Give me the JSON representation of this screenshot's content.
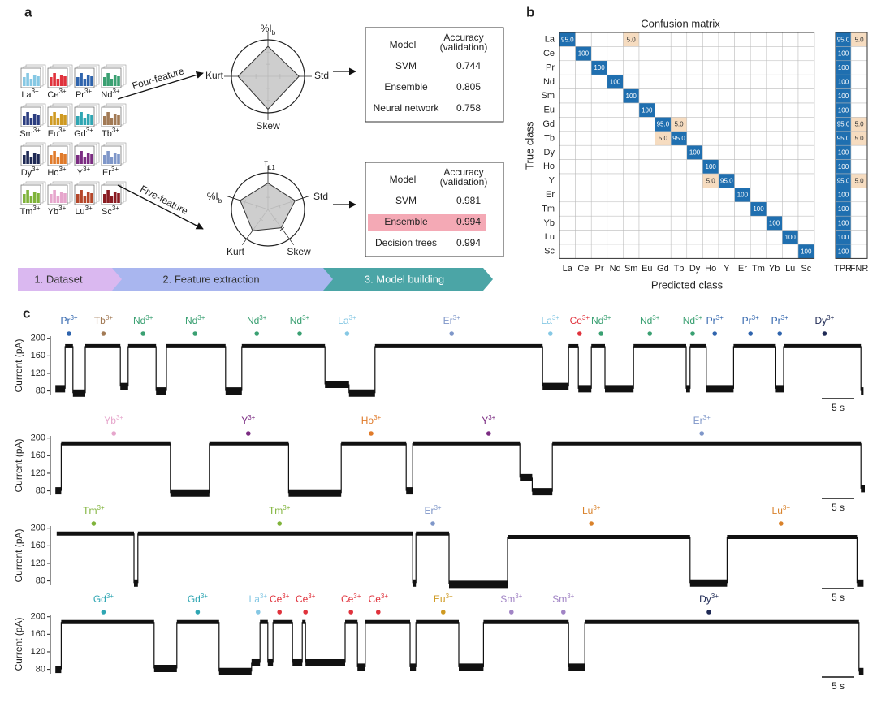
{
  "panel_a": {
    "letter": "a",
    "icons": [
      {
        "symbol": "La",
        "charge": "3+",
        "color": "#86c8e4"
      },
      {
        "symbol": "Ce",
        "charge": "3+",
        "color": "#e0323c"
      },
      {
        "symbol": "Pr",
        "charge": "3+",
        "color": "#2f64ad"
      },
      {
        "symbol": "Nd",
        "charge": "3+",
        "color": "#3aa072"
      },
      {
        "symbol": "Sm",
        "charge": "3+",
        "color": "#2b3d80"
      },
      {
        "symbol": "Eu",
        "charge": "3+",
        "color": "#cf9a22"
      },
      {
        "symbol": "Gd",
        "charge": "3+",
        "color": "#2fa6b3"
      },
      {
        "symbol": "Tb",
        "charge": "3+",
        "color": "#a27a55"
      },
      {
        "symbol": "Dy",
        "charge": "3+",
        "color": "#1f2a55"
      },
      {
        "symbol": "Ho",
        "charge": "3+",
        "color": "#e07b2b"
      },
      {
        "symbol": "Y",
        "charge": "3+",
        "color": "#7b2c82"
      },
      {
        "symbol": "Er",
        "charge": "3+",
        "color": "#7f97c9"
      },
      {
        "symbol": "Tm",
        "charge": "3+",
        "color": "#7fb33a"
      },
      {
        "symbol": "Yb",
        "charge": "3+",
        "color": "#e6a6cc"
      },
      {
        "symbol": "Lu",
        "charge": "3+",
        "color": "#b5472a"
      },
      {
        "symbol": "Sc",
        "charge": "3+",
        "color": "#8a1c22"
      }
    ],
    "four_feature": {
      "arrow_label": "Four-feature",
      "axes": [
        {
          "main": "%I",
          "sub": "b"
        },
        {
          "main": "Std"
        },
        {
          "main": "Skew"
        },
        {
          "main": "Kurt"
        }
      ],
      "table": {
        "model_header": "Model",
        "accuracy_header": [
          "Accuracy",
          "(validation)"
        ],
        "rows": [
          [
            "SVM",
            "0.744"
          ],
          [
            "Ensemble",
            "0.805"
          ],
          [
            "Neural network",
            "0.758"
          ]
        ]
      }
    },
    "five_feature": {
      "arrow_label": "Five-feature",
      "axes": [
        {
          "main": "τ",
          "sub": "L1"
        },
        {
          "main": "Std"
        },
        {
          "main": "Skew"
        },
        {
          "main": "Kurt"
        },
        {
          "main": "%I",
          "sub": "b"
        }
      ],
      "table": {
        "model_header": "Model",
        "accuracy_header": [
          "Accuracy",
          "(validation)"
        ],
        "rows": [
          [
            "SVM",
            "0.981"
          ],
          [
            "Ensemble",
            "0.994"
          ],
          [
            "Decision trees",
            "0.994"
          ]
        ],
        "highlight_row": 1,
        "highlight_color": "#f4a9b5"
      }
    },
    "pipeline": [
      {
        "label": "1. Dataset",
        "color": "#dab8f0"
      },
      {
        "label": "2. Feature extraction",
        "color": "#a9b6ef"
      },
      {
        "label": "3. Model building",
        "color": "#4ba5a6"
      }
    ]
  },
  "panel_b": {
    "letter": "b",
    "title": "Confusion matrix",
    "xlabel": "Predicted class",
    "ylabel": "True class",
    "classes": [
      "La",
      "Ce",
      "Pr",
      "Nd",
      "Sm",
      "Eu",
      "Gd",
      "Tb",
      "Dy",
      "Ho",
      "Y",
      "Er",
      "Tm",
      "Yb",
      "Lu",
      "Sc"
    ],
    "matrix": [
      [
        "95.0",
        null,
        null,
        null,
        "5.0",
        null,
        null,
        null,
        null,
        null,
        null,
        null,
        null,
        null,
        null,
        null
      ],
      [
        null,
        "100",
        null,
        null,
        null,
        null,
        null,
        null,
        null,
        null,
        null,
        null,
        null,
        null,
        null,
        null
      ],
      [
        null,
        null,
        "100",
        null,
        null,
        null,
        null,
        null,
        null,
        null,
        null,
        null,
        null,
        null,
        null,
        null
      ],
      [
        null,
        null,
        null,
        "100",
        null,
        null,
        null,
        null,
        null,
        null,
        null,
        null,
        null,
        null,
        null,
        null
      ],
      [
        null,
        null,
        null,
        null,
        "100",
        null,
        null,
        null,
        null,
        null,
        null,
        null,
        null,
        null,
        null,
        null
      ],
      [
        null,
        null,
        null,
        null,
        null,
        "100",
        null,
        null,
        null,
        null,
        null,
        null,
        null,
        null,
        null,
        null
      ],
      [
        null,
        null,
        null,
        null,
        null,
        null,
        "95.0",
        "5.0",
        null,
        null,
        null,
        null,
        null,
        null,
        null,
        null
      ],
      [
        null,
        null,
        null,
        null,
        null,
        null,
        "5.0",
        "95.0",
        null,
        null,
        null,
        null,
        null,
        null,
        null,
        null
      ],
      [
        null,
        null,
        null,
        null,
        null,
        null,
        null,
        null,
        "100",
        null,
        null,
        null,
        null,
        null,
        null,
        null
      ],
      [
        null,
        null,
        null,
        null,
        null,
        null,
        null,
        null,
        null,
        "100",
        null,
        null,
        null,
        null,
        null,
        null
      ],
      [
        null,
        null,
        null,
        null,
        null,
        null,
        null,
        null,
        null,
        "5.0",
        "95.0",
        null,
        null,
        null,
        null,
        null
      ],
      [
        null,
        null,
        null,
        null,
        null,
        null,
        null,
        null,
        null,
        null,
        null,
        "100",
        null,
        null,
        null,
        null
      ],
      [
        null,
        null,
        null,
        null,
        null,
        null,
        null,
        null,
        null,
        null,
        null,
        null,
        "100",
        null,
        null,
        null
      ],
      [
        null,
        null,
        null,
        null,
        null,
        null,
        null,
        null,
        null,
        null,
        null,
        null,
        null,
        "100",
        null,
        null
      ],
      [
        null,
        null,
        null,
        null,
        null,
        null,
        null,
        null,
        null,
        null,
        null,
        null,
        null,
        null,
        "100",
        null
      ],
      [
        null,
        null,
        null,
        null,
        null,
        null,
        null,
        null,
        null,
        null,
        null,
        null,
        null,
        null,
        null,
        "100"
      ]
    ],
    "rate_headers": [
      "TPR",
      "FNR"
    ],
    "tpr": [
      "95.0",
      "100",
      "100",
      "100",
      "100",
      "100",
      "95.0",
      "95.0",
      "100",
      "100",
      "95.0",
      "100",
      "100",
      "100",
      "100",
      "100"
    ],
    "fnr": [
      "5.0",
      null,
      null,
      null,
      null,
      null,
      "5.0",
      "5.0",
      null,
      null,
      "5.0",
      null,
      null,
      null,
      null,
      null
    ],
    "diagonal_color": "#1f6fb0",
    "offdiagonal_color": "#f6dcc0"
  },
  "panel_c": {
    "letter": "c",
    "ylabel": "Current (pA)",
    "xlim": [
      0,
      125
    ],
    "scalebar": {
      "value": 5,
      "label": "5 s"
    },
    "rows": [
      {
        "ylim": [
          70,
          205
        ],
        "yticks": [
          80,
          120,
          160,
          200
        ],
        "segments": [
          [
            0.4,
            1.9,
            85
          ],
          [
            1.9,
            3.1,
            182
          ],
          [
            3.1,
            5,
            75
          ],
          [
            5,
            10.4,
            182
          ],
          [
            10.4,
            11.6,
            90
          ],
          [
            11.6,
            15.9,
            182
          ],
          [
            15.9,
            17.5,
            80
          ],
          [
            17.5,
            26.6,
            182
          ],
          [
            26.6,
            29.1,
            80
          ],
          [
            29.1,
            41.9,
            182
          ],
          [
            41.9,
            45.6,
            95
          ],
          [
            45.6,
            49.6,
            75
          ],
          [
            49.6,
            75.4,
            182
          ],
          [
            75.4,
            79.4,
            90
          ],
          [
            79.4,
            80.9,
            182
          ],
          [
            80.9,
            82.9,
            85
          ],
          [
            82.9,
            85,
            182
          ],
          [
            85,
            89.4,
            85
          ],
          [
            89.4,
            97.5,
            182
          ],
          [
            97.5,
            98.1,
            85
          ],
          [
            98.1,
            100.6,
            182
          ],
          [
            100.6,
            104.8,
            85
          ],
          [
            104.8,
            111.3,
            182
          ],
          [
            111.3,
            112.5,
            85
          ],
          [
            112.5,
            124.4,
            182
          ],
          [
            124.4,
            124.8,
            80
          ]
        ],
        "ions": [
          {
            "t": 2.5,
            "symbol": "Pr",
            "charge": "3+",
            "color": "#2f64ad"
          },
          {
            "t": 7.8,
            "symbol": "Tb",
            "charge": "3+",
            "color": "#a27a55"
          },
          {
            "t": 13.9,
            "symbol": "Nd",
            "charge": "3+",
            "color": "#3aa072"
          },
          {
            "t": 21.9,
            "symbol": "Nd",
            "charge": "3+",
            "color": "#3aa072"
          },
          {
            "t": 31.4,
            "symbol": "Nd",
            "charge": "3+",
            "color": "#3aa072"
          },
          {
            "t": 38,
            "symbol": "Nd",
            "charge": "3+",
            "color": "#3aa072"
          },
          {
            "t": 45.3,
            "symbol": "La",
            "charge": "3+",
            "color": "#86c8e4"
          },
          {
            "t": 61.4,
            "symbol": "Er",
            "charge": "3+",
            "color": "#7f97c9"
          },
          {
            "t": 76.6,
            "symbol": "La",
            "charge": "3+",
            "color": "#86c8e4"
          },
          {
            "t": 81.1,
            "symbol": "Ce",
            "charge": "3+",
            "color": "#e0323c"
          },
          {
            "t": 84.4,
            "symbol": "Nd",
            "charge": "3+",
            "color": "#3aa072"
          },
          {
            "t": 91.9,
            "symbol": "Nd",
            "charge": "3+",
            "color": "#3aa072"
          },
          {
            "t": 98.5,
            "symbol": "Nd",
            "charge": "3+",
            "color": "#3aa072"
          },
          {
            "t": 101.9,
            "symbol": "Pr",
            "charge": "3+",
            "color": "#2f64ad"
          },
          {
            "t": 107.4,
            "symbol": "Pr",
            "charge": "3+",
            "color": "#2f64ad"
          },
          {
            "t": 111.9,
            "symbol": "Pr",
            "charge": "3+",
            "color": "#2f64ad"
          },
          {
            "t": 118.8,
            "symbol": "Dy",
            "charge": "3+",
            "color": "#1f2a55"
          }
        ]
      },
      {
        "ylim": [
          70,
          205
        ],
        "yticks": [
          80,
          120,
          160,
          200
        ],
        "segments": [
          [
            0.4,
            1.3,
            80
          ],
          [
            1.3,
            18.1,
            188
          ],
          [
            18.1,
            24.1,
            75
          ],
          [
            24.1,
            36.3,
            188
          ],
          [
            36.3,
            44.4,
            75
          ],
          [
            44.4,
            54.4,
            188
          ],
          [
            54.4,
            55.4,
            80
          ],
          [
            55.4,
            71.9,
            188
          ],
          [
            71.9,
            73.8,
            110
          ],
          [
            73.8,
            76.9,
            78
          ],
          [
            76.9,
            124.4,
            188
          ],
          [
            124.4,
            125,
            85
          ]
        ],
        "ions": [
          {
            "t": 9.4,
            "symbol": "Yb",
            "charge": "3+",
            "color": "#e6a6cc"
          },
          {
            "t": 30.1,
            "symbol": "Y",
            "charge": "3+",
            "color": "#7b2c82"
          },
          {
            "t": 49,
            "symbol": "Ho",
            "charge": "3+",
            "color": "#e07b2b"
          },
          {
            "t": 67.1,
            "symbol": "Y",
            "charge": "3+",
            "color": "#7b2c82"
          },
          {
            "t": 99.9,
            "symbol": "Er",
            "charge": "3+",
            "color": "#7f97c9"
          }
        ]
      },
      {
        "ylim": [
          70,
          205
        ],
        "yticks": [
          80,
          120,
          160,
          200
        ],
        "segments": [
          [
            0.6,
            12.5,
            188
          ],
          [
            12.5,
            13.1,
            75
          ],
          [
            13.1,
            55.4,
            188
          ],
          [
            55.4,
            55.9,
            75
          ],
          [
            55.9,
            61,
            188
          ],
          [
            61,
            70,
            72
          ],
          [
            70,
            98.1,
            180
          ],
          [
            98.1,
            103.8,
            75
          ],
          [
            103.8,
            123.8,
            180
          ],
          [
            123.8,
            124.8,
            75
          ]
        ],
        "ions": [
          {
            "t": 6.3,
            "symbol": "Tm",
            "charge": "3+",
            "color": "#7fb33a"
          },
          {
            "t": 34.9,
            "symbol": "Tm",
            "charge": "3+",
            "color": "#7fb33a"
          },
          {
            "t": 58.5,
            "symbol": "Er",
            "charge": "3+",
            "color": "#7f97c9"
          },
          {
            "t": 82.9,
            "symbol": "Lu",
            "charge": "3+",
            "color": "#d9822b"
          },
          {
            "t": 112.1,
            "symbol": "Lu",
            "charge": "3+",
            "color": "#d9822b"
          }
        ]
      },
      {
        "ylim": [
          70,
          205
        ],
        "yticks": [
          80,
          120,
          160,
          200
        ],
        "segments": [
          [
            0.4,
            1.3,
            80
          ],
          [
            1.3,
            15.6,
            188
          ],
          [
            15.6,
            19.1,
            82
          ],
          [
            19.1,
            25.6,
            188
          ],
          [
            25.6,
            30.6,
            75
          ],
          [
            30.6,
            31.9,
            95
          ],
          [
            31.9,
            33.1,
            188
          ],
          [
            33.1,
            33.9,
            95
          ],
          [
            33.9,
            36.9,
            188
          ],
          [
            36.9,
            38.4,
            95
          ],
          [
            38.4,
            38.9,
            188
          ],
          [
            38.9,
            45,
            95
          ],
          [
            45,
            46.9,
            188
          ],
          [
            46.9,
            48.1,
            85
          ],
          [
            48.1,
            55,
            188
          ],
          [
            55,
            55.9,
            85
          ],
          [
            55.9,
            62.5,
            188
          ],
          [
            62.5,
            66.3,
            85
          ],
          [
            66.3,
            79.4,
            188
          ],
          [
            79.4,
            81.9,
            85
          ],
          [
            81.9,
            124.1,
            188
          ],
          [
            124.1,
            124.8,
            75
          ]
        ],
        "ions": [
          {
            "t": 7.8,
            "symbol": "Gd",
            "charge": "3+",
            "color": "#2fa6b3"
          },
          {
            "t": 22.3,
            "symbol": "Gd",
            "charge": "3+",
            "color": "#2fa6b3"
          },
          {
            "t": 31.6,
            "symbol": "La",
            "charge": "3+",
            "color": "#86c8e4"
          },
          {
            "t": 34.9,
            "symbol": "Ce",
            "charge": "3+",
            "color": "#e0323c"
          },
          {
            "t": 38.9,
            "symbol": "Ce",
            "charge": "3+",
            "color": "#e0323c"
          },
          {
            "t": 45.9,
            "symbol": "Ce",
            "charge": "3+",
            "color": "#e0323c"
          },
          {
            "t": 50.1,
            "symbol": "Ce",
            "charge": "3+",
            "color": "#e0323c"
          },
          {
            "t": 60.1,
            "symbol": "Eu",
            "charge": "3+",
            "color": "#cf9a22"
          },
          {
            "t": 70.6,
            "symbol": "Sm",
            "charge": "3+",
            "color": "#a184c5"
          },
          {
            "t": 78.6,
            "symbol": "Sm",
            "charge": "3+",
            "color": "#a184c5"
          },
          {
            "t": 101,
            "symbol": "Dy",
            "charge": "3+",
            "color": "#1f2a55"
          }
        ]
      }
    ]
  }
}
